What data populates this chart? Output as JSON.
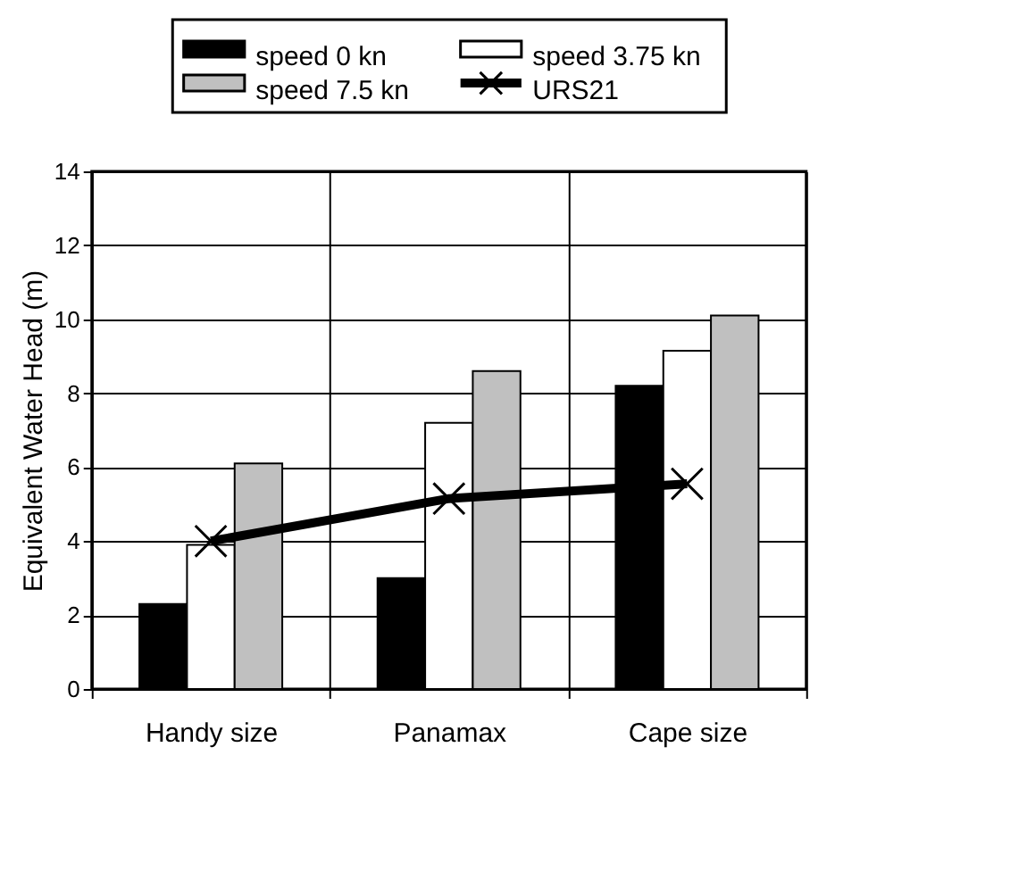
{
  "chart_data": {
    "type": "bar",
    "ylabel": "Equivalent Water Head (m)",
    "categories": [
      "Handy size",
      "Panamax",
      "Cape size"
    ],
    "series": [
      {
        "name": "speed 0 kn",
        "color": "#000000",
        "values": [
          2.3,
          3.0,
          8.2
        ]
      },
      {
        "name": "speed 3.75 kn",
        "color": "#ffffff",
        "values": [
          3.9,
          7.2,
          9.15
        ]
      },
      {
        "name": "speed 7.5 kn",
        "color": "#c0c0c0",
        "values": [
          6.1,
          8.6,
          10.1
        ]
      },
      {
        "name": "URS21",
        "type": "line",
        "color": "#000000",
        "marker": "cross",
        "line_style": "solid",
        "values": [
          4.0,
          5.15,
          5.55
        ]
      }
    ],
    "ylim": [
      0,
      14
    ],
    "yticks": [
      0,
      2,
      4,
      6,
      8,
      10,
      12,
      14
    ],
    "grid": true,
    "legend": "top"
  }
}
